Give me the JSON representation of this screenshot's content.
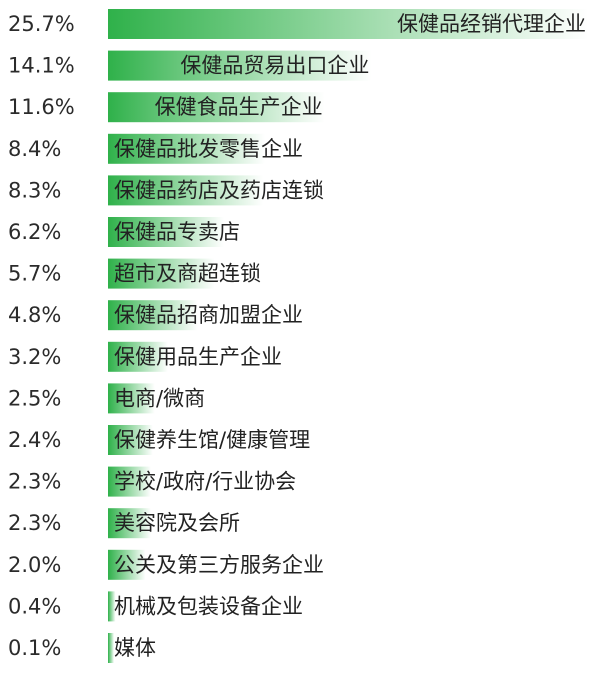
{
  "chart_data": {
    "type": "bar",
    "orientation": "horizontal",
    "categories": [
      "保健品经销代理企业",
      "保健品贸易出口企业",
      "保健食品生产企业",
      "保健品批发零售企业",
      "保健品药店及药店连锁",
      "保健品专卖店",
      "超市及商超连锁",
      "保健品招商加盟企业",
      "保健用品生产企业",
      "电商/微商",
      "保健养生馆/健康管理",
      "学校/政府/行业协会",
      "美容院及会所",
      "公关及第三方服务企业",
      "机械及包装设备企业",
      "媒体"
    ],
    "values": [
      25.7,
      14.1,
      11.6,
      8.4,
      8.3,
      6.2,
      5.7,
      4.8,
      3.2,
      2.5,
      2.4,
      2.3,
      2.3,
      2.0,
      0.4,
      0.1
    ],
    "value_labels": [
      "25.7%",
      "14.1%",
      "11.6%",
      "8.4%",
      "8.3%",
      "6.2%",
      "5.7%",
      "4.8%",
      "3.2%",
      "2.5%",
      "2.4%",
      "2.3%",
      "2.3%",
      "2.0%",
      "0.4%",
      "0.1%"
    ],
    "title": "",
    "xlabel": "",
    "ylabel": "",
    "grid": false,
    "legend": "none",
    "colors": {
      "bar_start": "#2fb14a",
      "bar_end": "#ffffff"
    }
  }
}
